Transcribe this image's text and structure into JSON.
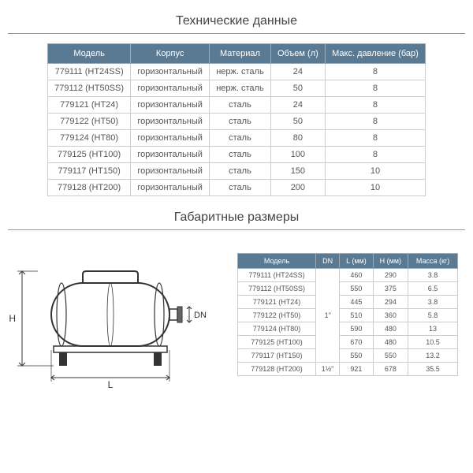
{
  "titles": {
    "tech": "Технические данные",
    "dims": "Габаритные размеры"
  },
  "colors": {
    "header_bg": "#5a7a94",
    "header_text": "#ffffff",
    "border": "#cccccc",
    "text": "#555555"
  },
  "tech_table": {
    "columns": [
      "Модель",
      "Корпус",
      "Материал",
      "Объем (л)",
      "Макс. давление (бар)"
    ],
    "rows": [
      [
        "779111 (HT24SS)",
        "горизонтальный",
        "нерж. сталь",
        "24",
        "8"
      ],
      [
        "779112 (HT50SS)",
        "горизонтальный",
        "нерж. сталь",
        "50",
        "8"
      ],
      [
        "779121 (HT24)",
        "горизонтальный",
        "сталь",
        "24",
        "8"
      ],
      [
        "779122 (HT50)",
        "горизонтальный",
        "сталь",
        "50",
        "8"
      ],
      [
        "779124 (HT80)",
        "горизонтальный",
        "сталь",
        "80",
        "8"
      ],
      [
        "779125 (HT100)",
        "горизонтальный",
        "сталь",
        "100",
        "8"
      ],
      [
        "779117 (HT150)",
        "горизонтальный",
        "сталь",
        "150",
        "10"
      ],
      [
        "779128 (HT200)",
        "горизонтальный",
        "сталь",
        "200",
        "10"
      ]
    ]
  },
  "dim_table": {
    "columns": [
      "Модель",
      "DN",
      "L (мм)",
      "H (мм)",
      "Масса (кг)"
    ],
    "rows": [
      [
        "779111 (HT24SS)",
        "",
        "460",
        "290",
        "3.8"
      ],
      [
        "779112 (HT50SS)",
        "",
        "550",
        "375",
        "6.5"
      ],
      [
        "779121 (HT24)",
        "",
        "445",
        "294",
        "3.8"
      ],
      [
        "779122 (HT50)",
        "1\"",
        "510",
        "360",
        "5.8"
      ],
      [
        "779124 (HT80)",
        "",
        "590",
        "480",
        "13"
      ],
      [
        "779125 (HT100)",
        "",
        "670",
        "480",
        "10.5"
      ],
      [
        "779117 (HT150)",
        "",
        "550",
        "550",
        "13.2"
      ],
      [
        "779128 (HT200)",
        "1½\"",
        "921",
        "678",
        "35.5"
      ]
    ],
    "dn_rowspan_groups": [
      {
        "start": 0,
        "span": 7,
        "value": "1\""
      },
      {
        "start": 7,
        "span": 1,
        "value": "1½\""
      }
    ]
  },
  "diagram_labels": {
    "H": "H",
    "L": "L",
    "DN": "DN"
  }
}
